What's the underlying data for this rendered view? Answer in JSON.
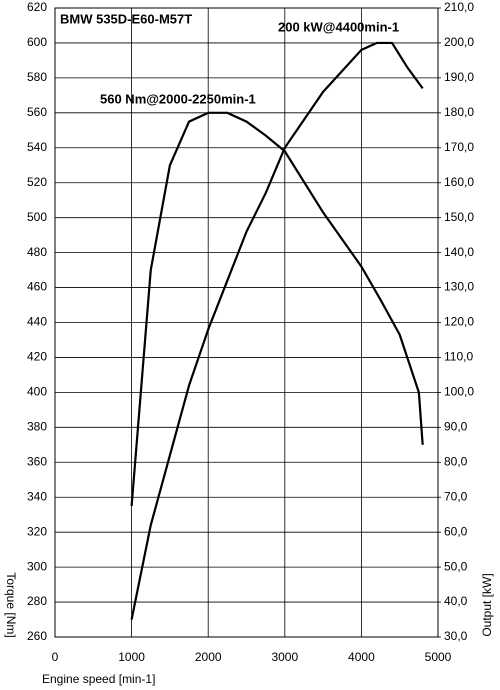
{
  "chart_data": {
    "type": "line",
    "title": "BMW 535D-E60-M57T",
    "xlabel": "Engine speed [min-1]",
    "ylabel": "Torque [Nm]",
    "y2label": "Output [kW]",
    "annotations": [
      "560 Nm@2000-2250min-1",
      "200 kW@4400min-1"
    ],
    "xlim": [
      0,
      5000
    ],
    "xticks": [
      0,
      1000,
      2000,
      3000,
      4000,
      5000
    ],
    "ylim": [
      260,
      620
    ],
    "yticks": [
      260,
      280,
      300,
      320,
      340,
      360,
      380,
      400,
      420,
      440,
      460,
      480,
      500,
      520,
      540,
      560,
      580,
      600,
      620
    ],
    "y2lim": [
      30,
      210
    ],
    "y2ticks": [
      {
        "value": 30,
        "label": "30,0"
      },
      {
        "value": 40,
        "label": "40,0"
      },
      {
        "value": 50,
        "label": "50,0"
      },
      {
        "value": 60,
        "label": "60,0"
      },
      {
        "value": 70,
        "label": "70,0"
      },
      {
        "value": 80,
        "label": "80,0"
      },
      {
        "value": 90,
        "label": "90,0"
      },
      {
        "value": 100,
        "label": "100,0"
      },
      {
        "value": 110,
        "label": "110,0"
      },
      {
        "value": 120,
        "label": "120,0"
      },
      {
        "value": 130,
        "label": "130,0"
      },
      {
        "value": 140,
        "label": "140,0"
      },
      {
        "value": 150,
        "label": "150,0"
      },
      {
        "value": 160,
        "label": "160,0"
      },
      {
        "value": 170,
        "label": "170,0"
      },
      {
        "value": 180,
        "label": "180,0"
      },
      {
        "value": 190,
        "label": "190,0"
      },
      {
        "value": 200,
        "label": "200,0"
      },
      {
        "value": 210,
        "label": "210,0"
      }
    ],
    "grid": true,
    "series": [
      {
        "color": "#000000",
        "x": [
          1000,
          1250,
          1500,
          1750,
          2000,
          2250,
          2500,
          2750,
          3000,
          3500,
          4000,
          4250,
          4500,
          4750,
          4800
        ],
        "values": [
          335,
          470,
          530,
          555,
          560,
          560,
          555,
          547,
          538,
          503,
          472,
          453,
          433,
          400,
          370
        ]
      },
      {
        "color": "#000000",
        "axis": "y2",
        "x": [
          1000,
          1250,
          1500,
          1750,
          2000,
          2250,
          2500,
          2750,
          3000,
          3500,
          4000,
          4200,
          4400,
          4600,
          4800
        ],
        "values": [
          35,
          62,
          82,
          102,
          118,
          132,
          146,
          157,
          170,
          186,
          198,
          200,
          200,
          193,
          187
        ]
      }
    ]
  }
}
